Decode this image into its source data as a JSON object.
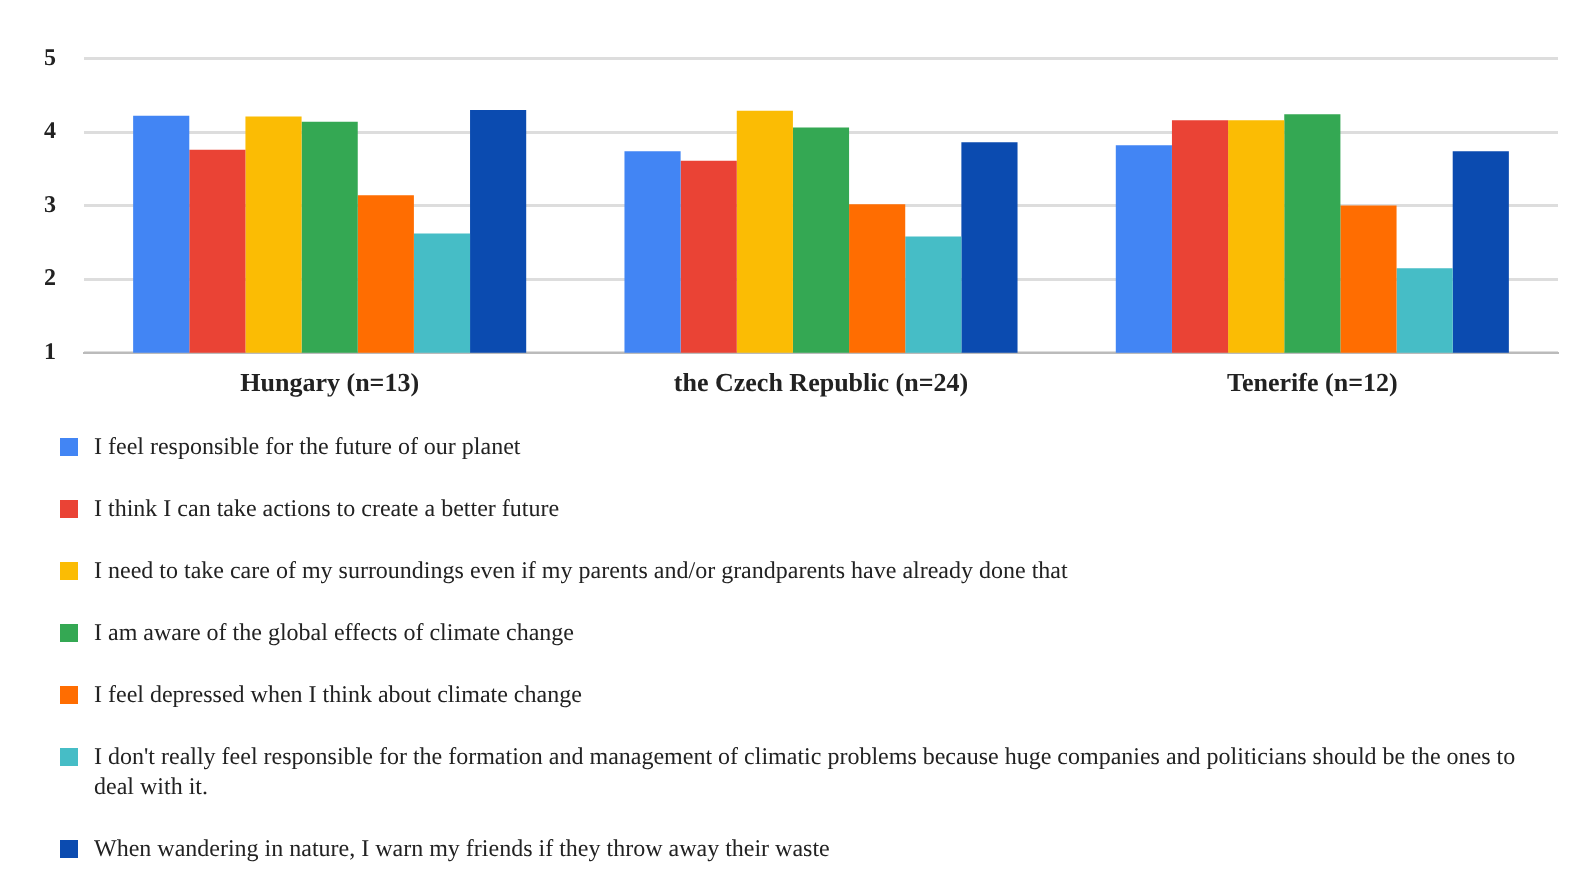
{
  "chart_data": {
    "type": "bar",
    "categories": [
      "Hungary (n=13)",
      "the Czech Republic (n=24)",
      "Tenerife (n=12)"
    ],
    "series": [
      {
        "name": "I feel responsible for the future of our planet",
        "color": "#4285f4",
        "values": [
          4.22,
          3.74,
          3.82
        ]
      },
      {
        "name": "I think I can take actions to create a better future",
        "color": "#ea4335",
        "values": [
          3.76,
          3.61,
          4.16
        ]
      },
      {
        "name": "I need to take care of my surroundings even if my parents and/or grandparents have already done that",
        "color": "#fbbc04",
        "values": [
          4.21,
          4.29,
          4.16
        ]
      },
      {
        "name": "I am aware of the global effects of climate change",
        "color": "#34a853",
        "values": [
          4.14,
          4.06,
          4.24
        ]
      },
      {
        "name": "I feel depressed when I think about climate change",
        "color": "#ff6d01",
        "values": [
          3.14,
          3.02,
          3.0
        ]
      },
      {
        "name": "I don't really feel responsible for the formation and management of climatic problems because huge companies and politicians should be the ones to deal with it.",
        "color": "#46bdc6",
        "values": [
          2.62,
          2.58,
          2.15
        ]
      },
      {
        "name": "When wandering in nature, I warn my friends if they throw away their waste",
        "color": "#0b4bb0",
        "values": [
          4.3,
          3.86,
          3.74
        ]
      }
    ],
    "ylim": [
      1,
      5
    ],
    "yticks": [
      1,
      2,
      3,
      4,
      5
    ],
    "grid": "y",
    "legend": "bottom"
  }
}
